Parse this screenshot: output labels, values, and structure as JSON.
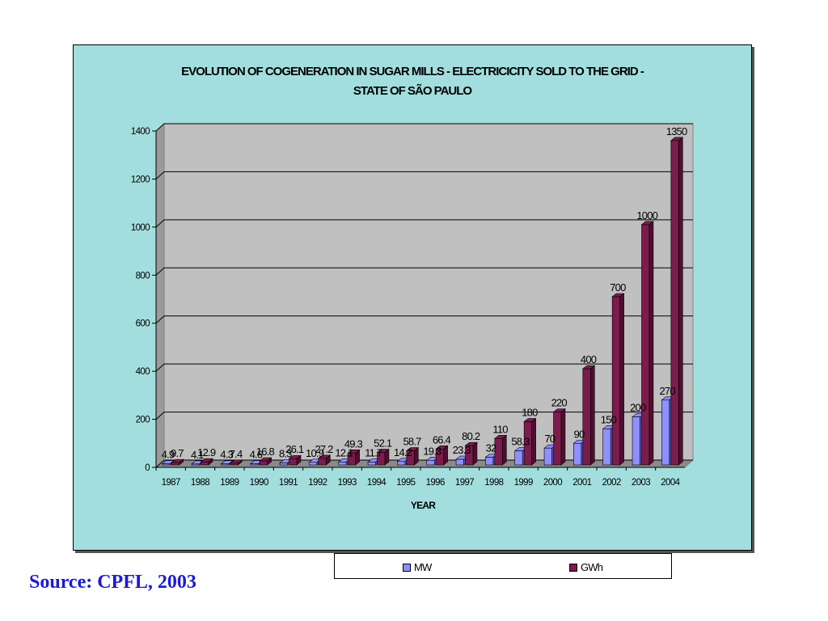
{
  "source_note": "Source: CPFL, 2003",
  "legend": {
    "series_1": {
      "label": "MW",
      "color": "#8f8fff"
    },
    "series_2": {
      "label": "GWh",
      "color": "#7b1c4d"
    }
  },
  "chart_data": {
    "type": "bar",
    "title_lines": [
      "EVOLUTION OF COGENERATION IN SUGAR MILLS - ELECTRICICITY SOLD TO THE GRID -",
      "STATE OF SÃO PAULO"
    ],
    "xlabel": "YEAR",
    "ylabel": "",
    "ylim": [
      0,
      1400
    ],
    "y_ticks": [
      0,
      200,
      400,
      600,
      800,
      1000,
      1200,
      1400
    ],
    "grid": true,
    "legend_position": "bottom",
    "categories": [
      "1987",
      "1988",
      "1989",
      "1990",
      "1991",
      "1992",
      "1993",
      "1994",
      "1995",
      "1996",
      "1997",
      "1998",
      "1999",
      "2000",
      "2001",
      "2002",
      "2003",
      "2004"
    ],
    "series": [
      {
        "name": "MW",
        "color": "#8f8fff",
        "side_color": "#5a5ac4",
        "values": [
          4.9,
          4.1,
          4.3,
          4.6,
          8.3,
          10.9,
          12.1,
          11.7,
          14.2,
          19.3,
          23.3,
          32,
          58.3,
          70,
          90,
          150,
          200,
          270
        ],
        "value_labels": [
          "4.9",
          "4.1",
          "4.3",
          "4.6",
          "8.3",
          "10.9",
          "12.1",
          "11.7",
          "14.2",
          "19.3",
          "23.3",
          "32",
          "58.3",
          "70",
          "90",
          "150",
          "200",
          "270"
        ]
      },
      {
        "name": "GWh",
        "color": "#7b1c4d",
        "side_color": "#4e0f2f",
        "values": [
          9.7,
          12.9,
          7.4,
          16.8,
          26.1,
          27.2,
          49.3,
          52.1,
          58.7,
          66.4,
          80.2,
          110,
          180,
          220,
          400,
          700,
          1000,
          1350
        ],
        "value_labels": [
          "9.7",
          "12.9",
          "7.4",
          "16.8",
          "26.1",
          "27.2",
          "49.3",
          "52.1",
          "58.7",
          "66.4",
          "80.2",
          "110",
          "180",
          "220",
          "400",
          "700",
          "1000",
          "1350"
        ]
      }
    ]
  }
}
